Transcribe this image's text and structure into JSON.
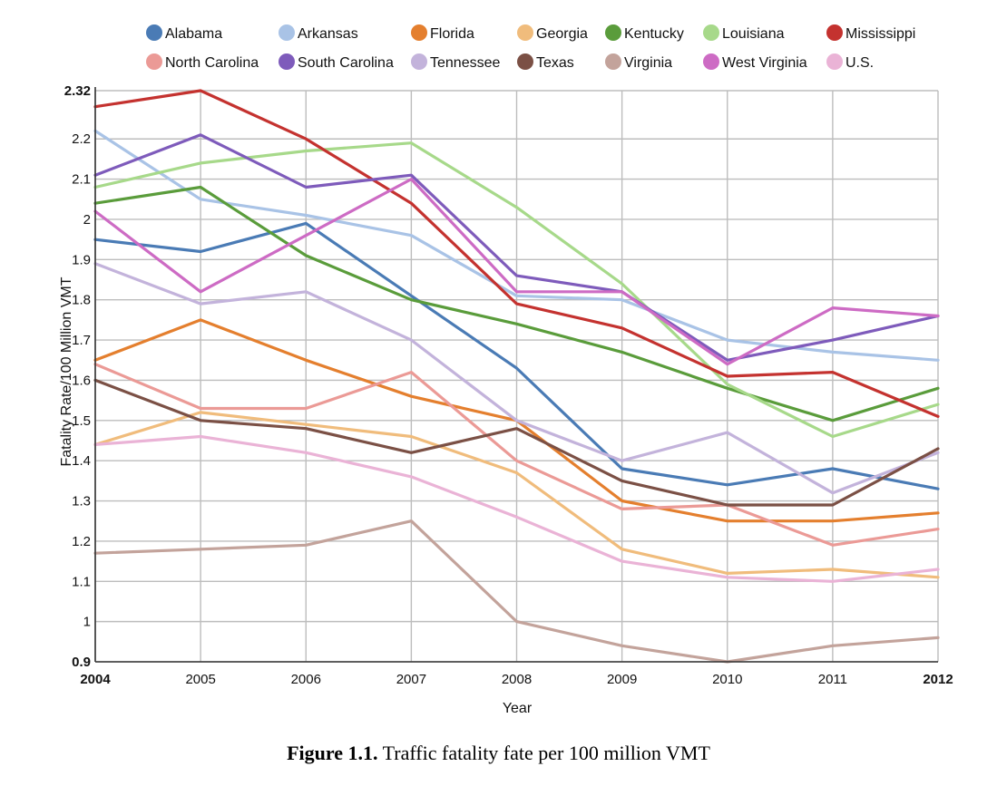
{
  "caption": {
    "label": "Figure 1.1.",
    "text": "Traffic fatality fate per 100 million VMT"
  },
  "chart_data": {
    "type": "line",
    "title": "",
    "xlabel": "Year",
    "ylabel": "Fatality Rate/100 Million VMT",
    "x": [
      2004,
      2005,
      2006,
      2007,
      2008,
      2009,
      2010,
      2011,
      2012
    ],
    "x_tick_labels": [
      "2004",
      "2005",
      "2006",
      "2007",
      "2008",
      "2009",
      "2010",
      "2011",
      "2012"
    ],
    "y_tick_labels": [
      "0.9",
      "1",
      "1.1",
      "1.2",
      "1.3",
      "1.4",
      "1.5",
      "1.6",
      "1.7",
      "1.8",
      "1.9",
      "2",
      "2.1",
      "2.2",
      "2.32"
    ],
    "ylim": [
      0.9,
      2.32
    ],
    "grid": true,
    "legend_position": "top",
    "series": [
      {
        "name": "Alabama",
        "color": "#4a7bb5",
        "values": [
          1.95,
          1.92,
          1.99,
          1.81,
          1.63,
          1.38,
          1.34,
          1.38,
          1.33
        ]
      },
      {
        "name": "Arkansas",
        "color": "#a9c3e6",
        "values": [
          2.22,
          2.05,
          2.01,
          1.96,
          1.81,
          1.8,
          1.7,
          1.67,
          1.65
        ]
      },
      {
        "name": "Florida",
        "color": "#e47f2e",
        "values": [
          1.65,
          1.75,
          1.65,
          1.56,
          1.5,
          1.3,
          1.25,
          1.25,
          1.27
        ]
      },
      {
        "name": "Georgia",
        "color": "#f0bc7c",
        "values": [
          1.44,
          1.52,
          1.49,
          1.46,
          1.37,
          1.18,
          1.12,
          1.13,
          1.11
        ]
      },
      {
        "name": "Kentucky",
        "color": "#5a9c3b",
        "values": [
          2.04,
          2.08,
          1.91,
          1.8,
          1.74,
          1.67,
          1.58,
          1.5,
          1.58
        ]
      },
      {
        "name": "Louisiana",
        "color": "#a7d98a",
        "values": [
          2.08,
          2.14,
          2.17,
          2.19,
          2.03,
          1.84,
          1.59,
          1.46,
          1.54
        ]
      },
      {
        "name": "Mississippi",
        "color": "#c4322f",
        "values": [
          2.28,
          2.32,
          2.2,
          2.04,
          1.79,
          1.73,
          1.61,
          1.62,
          1.51
        ]
      },
      {
        "name": "North Carolina",
        "color": "#eb9a96",
        "values": [
          1.64,
          1.53,
          1.53,
          1.62,
          1.4,
          1.28,
          1.29,
          1.19,
          1.23
        ]
      },
      {
        "name": "South Carolina",
        "color": "#7e5bbb",
        "values": [
          2.11,
          2.21,
          2.08,
          2.11,
          1.86,
          1.82,
          1.65,
          1.7,
          1.76
        ]
      },
      {
        "name": "Tennessee",
        "color": "#c3b3db",
        "values": [
          1.89,
          1.79,
          1.82,
          1.7,
          1.5,
          1.4,
          1.47,
          1.32,
          1.42
        ]
      },
      {
        "name": "Texas",
        "color": "#7b5045",
        "values": [
          1.6,
          1.5,
          1.48,
          1.42,
          1.48,
          1.35,
          1.29,
          1.29,
          1.43
        ]
      },
      {
        "name": "Virginia",
        "color": "#c3a39b",
        "values": [
          1.17,
          1.18,
          1.19,
          1.25,
          1.0,
          0.94,
          0.9,
          0.94,
          0.96
        ]
      },
      {
        "name": "West Virginia",
        "color": "#cd6bc4",
        "values": [
          2.02,
          1.82,
          1.96,
          2.1,
          1.82,
          1.82,
          1.64,
          1.78,
          1.76
        ]
      },
      {
        "name": "U.S.",
        "color": "#eab3d6",
        "values": [
          1.44,
          1.46,
          1.42,
          1.36,
          1.26,
          1.15,
          1.11,
          1.1,
          1.13
        ]
      }
    ]
  }
}
